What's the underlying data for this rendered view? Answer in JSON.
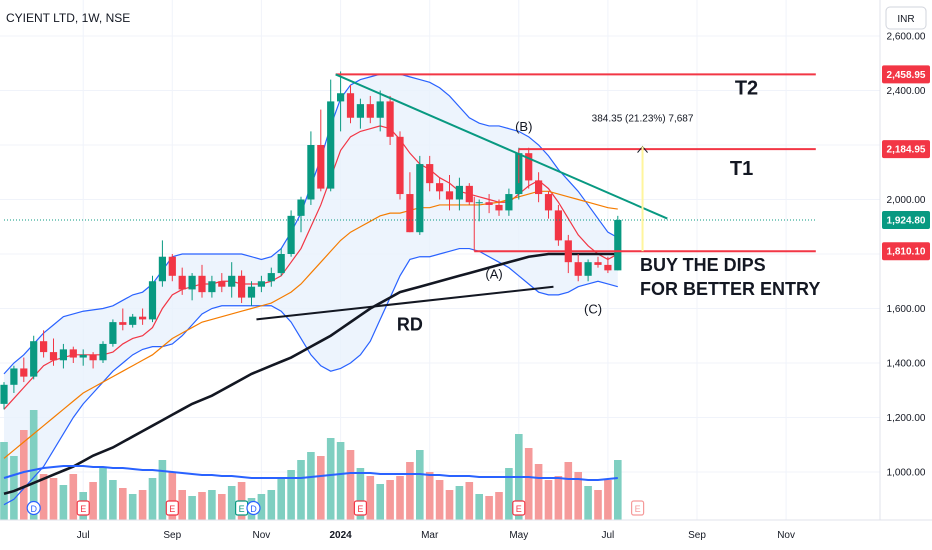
{
  "header": {
    "title": "CYIENT LTD, 1W, NSE",
    "currency": "INR"
  },
  "chart_data": {
    "type": "candlestick",
    "y_axis": {
      "ticks": [
        1000,
        1200,
        1400,
        1600,
        1800,
        2000,
        2200,
        2400,
        2600
      ],
      "tick_labels": [
        "1,000.00",
        "1,200.00",
        "1,400.00",
        "1,600.00",
        "1,800.00",
        "2,000.00",
        "2,200.00",
        "2,400.00",
        "2,600.00"
      ],
      "range": [
        780,
        2620
      ]
    },
    "x_axis": {
      "tick_labels": [
        "Jul",
        "Sep",
        "Nov",
        "2024",
        "Mar",
        "May",
        "Jul",
        "Sep",
        "Nov"
      ],
      "tick_weeks": [
        8,
        17,
        26,
        34,
        43,
        52,
        61,
        70,
        79
      ]
    },
    "price_labels": [
      {
        "value": 2458.95,
        "text": "2,458.95",
        "color": "#f23645"
      },
      {
        "value": 2184.95,
        "text": "2,184.95",
        "color": "#f23645"
      },
      {
        "value": 1924.8,
        "text": "1,924.80",
        "color": "#089981"
      },
      {
        "value": 1810.1,
        "text": "1,810.10",
        "color": "#f23645"
      }
    ],
    "candles": [
      [
        1250,
        1330,
        1230,
        1320
      ],
      [
        1320,
        1390,
        1290,
        1380
      ],
      [
        1380,
        1420,
        1330,
        1350
      ],
      [
        1350,
        1500,
        1340,
        1480
      ],
      [
        1480,
        1520,
        1420,
        1440
      ],
      [
        1440,
        1490,
        1390,
        1410
      ],
      [
        1410,
        1470,
        1380,
        1450
      ],
      [
        1450,
        1460,
        1400,
        1420
      ],
      [
        1420,
        1450,
        1390,
        1430
      ],
      [
        1430,
        1440,
        1380,
        1410
      ],
      [
        1410,
        1480,
        1400,
        1470
      ],
      [
        1470,
        1560,
        1460,
        1550
      ],
      [
        1550,
        1600,
        1520,
        1540
      ],
      [
        1540,
        1580,
        1530,
        1570
      ],
      [
        1570,
        1600,
        1540,
        1560
      ],
      [
        1560,
        1720,
        1550,
        1700
      ],
      [
        1700,
        1850,
        1680,
        1790
      ],
      [
        1790,
        1800,
        1700,
        1720
      ],
      [
        1720,
        1750,
        1650,
        1670
      ],
      [
        1670,
        1730,
        1630,
        1720
      ],
      [
        1720,
        1760,
        1640,
        1660
      ],
      [
        1660,
        1720,
        1640,
        1700
      ],
      [
        1700,
        1730,
        1660,
        1680
      ],
      [
        1680,
        1770,
        1640,
        1720
      ],
      [
        1720,
        1740,
        1620,
        1640
      ],
      [
        1640,
        1700,
        1610,
        1680
      ],
      [
        1680,
        1720,
        1660,
        1700
      ],
      [
        1700,
        1750,
        1680,
        1730
      ],
      [
        1730,
        1820,
        1720,
        1800
      ],
      [
        1800,
        1960,
        1790,
        1940
      ],
      [
        1940,
        2010,
        1880,
        2000
      ],
      [
        2000,
        2250,
        1980,
        2200
      ],
      [
        2200,
        2330,
        2030,
        2040
      ],
      [
        2040,
        2440,
        2030,
        2360
      ],
      [
        2360,
        2470,
        2250,
        2390
      ],
      [
        2390,
        2420,
        2280,
        2300
      ],
      [
        2300,
        2370,
        2260,
        2350
      ],
      [
        2350,
        2380,
        2280,
        2300
      ],
      [
        2300,
        2400,
        2250,
        2360
      ],
      [
        2360,
        2380,
        2200,
        2230
      ],
      [
        2230,
        2250,
        2000,
        2020
      ],
      [
        2020,
        2100,
        1880,
        1880
      ],
      [
        1880,
        2160,
        1870,
        2130
      ],
      [
        2130,
        2160,
        2030,
        2060
      ],
      [
        2060,
        2080,
        2000,
        2030
      ],
      [
        2030,
        2090,
        1960,
        2000
      ],
      [
        2000,
        2080,
        1960,
        2050
      ],
      [
        2050,
        2060,
        1980,
        1990
      ],
      [
        1990,
        2000,
        1920,
        1990
      ],
      [
        1990,
        2020,
        1950,
        1980
      ],
      [
        1980,
        2000,
        1940,
        1960
      ],
      [
        1960,
        2040,
        1940,
        2020
      ],
      [
        2020,
        2190,
        2000,
        2170
      ],
      [
        2170,
        2190,
        2040,
        2070
      ],
      [
        2070,
        2100,
        1990,
        2020
      ],
      [
        2020,
        2030,
        1930,
        1960
      ],
      [
        1960,
        1980,
        1830,
        1850
      ],
      [
        1850,
        1870,
        1730,
        1770
      ],
      [
        1770,
        1800,
        1700,
        1720
      ],
      [
        1720,
        1780,
        1700,
        1770
      ],
      [
        1770,
        1790,
        1750,
        1760
      ],
      [
        1760,
        1790,
        1730,
        1740
      ],
      [
        1740,
        1940,
        1740,
        1925
      ]
    ],
    "volume": [
      78,
      64,
      90,
      110,
      46,
      42,
      35,
      46,
      28,
      38,
      52,
      40,
      32,
      26,
      30,
      42,
      60,
      48,
      30,
      24,
      28,
      30,
      26,
      34,
      38,
      22,
      26,
      30,
      42,
      50,
      60,
      68,
      64,
      82,
      78,
      70,
      52,
      44,
      36,
      40,
      44,
      58,
      70,
      48,
      40,
      30,
      34,
      38,
      26,
      24,
      28,
      52,
      86,
      72,
      56,
      40,
      44,
      58,
      48,
      34,
      30,
      40,
      60
    ],
    "series": [
      {
        "name": "Upper Band",
        "color": "#2962ff",
        "values": [
          1360,
          1400,
          1430,
          1470,
          1510,
          1540,
          1570,
          1580,
          1590,
          1595,
          1600,
          1610,
          1630,
          1650,
          1660,
          1690,
          1740,
          1790,
          1800,
          1800,
          1800,
          1800,
          1800,
          1800,
          1800,
          1790,
          1780,
          1790,
          1820,
          1880,
          1950,
          2050,
          2150,
          2270,
          2370,
          2420,
          2440,
          2450,
          2460,
          2460,
          2460,
          2450,
          2440,
          2430,
          2410,
          2380,
          2340,
          2300,
          2280,
          2270,
          2270,
          2260,
          2250,
          2230,
          2200,
          2160,
          2110,
          2070,
          2030,
          1980,
          1930,
          1880,
          1860
        ]
      },
      {
        "name": "Lower Band",
        "color": "#2962ff",
        "values": [
          880,
          900,
          940,
          980,
          1020,
          1080,
          1140,
          1200,
          1250,
          1290,
          1330,
          1370,
          1400,
          1430,
          1450,
          1460,
          1460,
          1470,
          1500,
          1540,
          1580,
          1600,
          1610,
          1610,
          1610,
          1610,
          1610,
          1610,
          1590,
          1550,
          1490,
          1430,
          1390,
          1370,
          1380,
          1400,
          1430,
          1480,
          1560,
          1640,
          1720,
          1780,
          1790,
          1790,
          1800,
          1810,
          1820,
          1820,
          1810,
          1790,
          1770,
          1750,
          1720,
          1690,
          1660,
          1650,
          1650,
          1660,
          1680,
          1690,
          1700,
          1690,
          1680
        ]
      },
      {
        "name": "EMA Fast",
        "color": "#f23645",
        "values": [
          1230,
          1270,
          1310,
          1350,
          1390,
          1410,
          1420,
          1430,
          1430,
          1430,
          1430,
          1440,
          1470,
          1490,
          1500,
          1530,
          1600,
          1650,
          1670,
          1680,
          1690,
          1690,
          1700,
          1700,
          1690,
          1690,
          1690,
          1700,
          1720,
          1770,
          1820,
          1900,
          1980,
          2080,
          2180,
          2230,
          2250,
          2260,
          2270,
          2260,
          2220,
          2170,
          2130,
          2110,
          2080,
          2060,
          2030,
          2020,
          2010,
          2000,
          1990,
          1990,
          2020,
          2050,
          2070,
          2040,
          1990,
          1930,
          1870,
          1830,
          1800,
          1780,
          1800
        ]
      },
      {
        "name": "EMA Slow",
        "color": "#f57c00",
        "values": [
          1050,
          1080,
          1110,
          1140,
          1170,
          1200,
          1230,
          1260,
          1290,
          1310,
          1330,
          1350,
          1370,
          1390,
          1410,
          1430,
          1460,
          1490,
          1510,
          1530,
          1550,
          1560,
          1570,
          1580,
          1590,
          1600,
          1610,
          1620,
          1640,
          1660,
          1690,
          1730,
          1770,
          1810,
          1850,
          1880,
          1900,
          1920,
          1940,
          1950,
          1950,
          1960,
          1970,
          1970,
          1980,
          1980,
          1980,
          1980,
          1980,
          1985,
          1990,
          2000,
          2010,
          2020,
          2030,
          2030,
          2020,
          2010,
          2000,
          1990,
          1980,
          1970,
          1965
        ]
      },
      {
        "name": "Long MA",
        "color": "#131722",
        "values": [
          920,
          930,
          945,
          960,
          975,
          990,
          1005,
          1020,
          1040,
          1060,
          1075,
          1090,
          1110,
          1130,
          1150,
          1170,
          1190,
          1210,
          1230,
          1250,
          1265,
          1280,
          1300,
          1320,
          1340,
          1360,
          1375,
          1390,
          1405,
          1420,
          1440,
          1460,
          1480,
          1500,
          1525,
          1550,
          1575,
          1600,
          1620,
          1640,
          1660,
          1670,
          1680,
          1690,
          1700,
          1710,
          1720,
          1730,
          1740,
          1750,
          1760,
          1770,
          1780,
          1790,
          1795,
          1800,
          1800,
          1800,
          1800,
          1800,
          1800,
          1800,
          1800
        ]
      },
      {
        "name": "Volume MA",
        "color": "#2962ff",
        "values": [
          42,
          45,
          48,
          50,
          52,
          53,
          54,
          54,
          54,
          53,
          53,
          52,
          52,
          51,
          50,
          50,
          49,
          48,
          47,
          46,
          45,
          45,
          44,
          44,
          43,
          42,
          42,
          42,
          42,
          42,
          42,
          43,
          44,
          45,
          46,
          47,
          47,
          47,
          46,
          46,
          46,
          46,
          46,
          45,
          45,
          44,
          44,
          44,
          43,
          43,
          43,
          43,
          43,
          43,
          42,
          42,
          42,
          41,
          41,
          40,
          40,
          41,
          42
        ]
      }
    ],
    "lines": [
      {
        "name": "T2",
        "value": 2458.95,
        "color": "#f23645",
        "from_week": 33.5,
        "to_week": 82
      },
      {
        "name": "T1",
        "value": 2184.95,
        "color": "#f23645",
        "from_week": 52,
        "to_week": 82
      },
      {
        "name": "support",
        "value": 1810.1,
        "color": "#f23645",
        "from_week": 47.5,
        "to_week": 82
      },
      {
        "name": "last",
        "value": 1924.8,
        "color": "#089981",
        "dotted": true,
        "from_week": 0,
        "to_week": 82
      }
    ],
    "trendlines": [
      {
        "name": "downtrend",
        "color": "#089981",
        "points": [
          [
            33.5,
            2458.95
          ],
          [
            67,
            1930
          ]
        ]
      },
      {
        "name": "RD",
        "color": "#131722",
        "points": [
          [
            25.5,
            1560
          ],
          [
            55.5,
            1680
          ]
        ]
      }
    ],
    "measure": {
      "week": 64.5,
      "from": 1810.1,
      "to": 2194.45,
      "label": "384.35 (21.23%) 7,687"
    },
    "annotations": {
      "t2": "T2",
      "t1": "T1",
      "b": "(B)",
      "a": "(A)",
      "c": "(C)",
      "rd": "RD",
      "buy1": "BUY THE DIPS",
      "buy2": "FOR BETTER ENTRY"
    },
    "events": [
      {
        "week": 3,
        "letter": "D",
        "type": "dividend"
      },
      {
        "week": 8,
        "letter": "E",
        "type": "earnings"
      },
      {
        "week": 17,
        "letter": "E",
        "type": "earnings"
      },
      {
        "week": 24,
        "letter": "E",
        "type": "earnings"
      },
      {
        "week": 25.2,
        "letter": "D",
        "type": "dividend"
      },
      {
        "week": 36,
        "letter": "E",
        "type": "earnings"
      },
      {
        "week": 52,
        "letter": "E",
        "type": "earnings"
      },
      {
        "week": 64,
        "letter": "E",
        "type": "earnings-future"
      }
    ],
    "colors": {
      "up": "#089981",
      "down": "#f23645",
      "volume_up": "#7fcfc1",
      "volume_down": "#f59a9a",
      "band_fill": "#e8f1fd"
    }
  }
}
